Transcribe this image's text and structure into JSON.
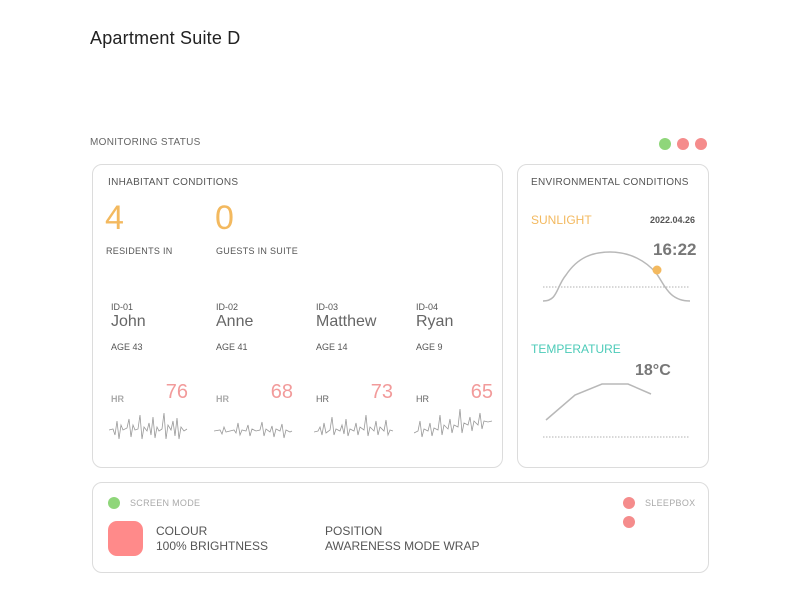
{
  "page": {
    "title": "Apartment Suite D"
  },
  "monitoring": {
    "label": "MONITORING STATUS",
    "status_dots": [
      "#8fd67a",
      "#f58c8c",
      "#f58c8c"
    ]
  },
  "inhabitants": {
    "title": "INHABITANT CONDITIONS",
    "residents_count": "4",
    "residents_label": "RESIDENTS IN",
    "guests_count": "0",
    "guests_label": "GUESTS IN SUITE",
    "accent_color": "#f3b95f",
    "people": [
      {
        "id": "ID-01",
        "name": "John",
        "age": "AGE 43",
        "hr_label": "HR",
        "hr": "76"
      },
      {
        "id": "ID-02",
        "name": "Anne",
        "age": "AGE 41",
        "hr_label": "HR",
        "hr": "68"
      },
      {
        "id": "ID-03",
        "name": "Matthew",
        "age": "AGE 14",
        "hr_label": "HR",
        "hr": "73"
      },
      {
        "id": "ID-04",
        "name": "Ryan",
        "age": "AGE 9",
        "hr_label": "HR",
        "hr": "65"
      }
    ],
    "hr_color": "#f29b9b"
  },
  "environment": {
    "title": "ENVIRONMENTAL CONDITIONS",
    "sunlight_label": "SUNLIGHT",
    "date": "2022.04.26",
    "time": "16:22",
    "temperature_label": "TEMPERATURE",
    "temperature": "18°C",
    "sunlight_color": "#f3b95f",
    "temperature_color": "#4ccbb8"
  },
  "screen": {
    "mode_label": "SCREEN MODE",
    "mode_dot_color": "#8fd67a",
    "sleepbox_label": "SLEEPBOX",
    "sleepbox_dot_color": "#f58c8c",
    "colour_title": "COLOUR",
    "colour_value": "100% BRIGHTNESS",
    "colour_swatch": "#ff8a8a",
    "position_title": "POSITION",
    "position_value": "AWARENESS MODE WRAP"
  }
}
